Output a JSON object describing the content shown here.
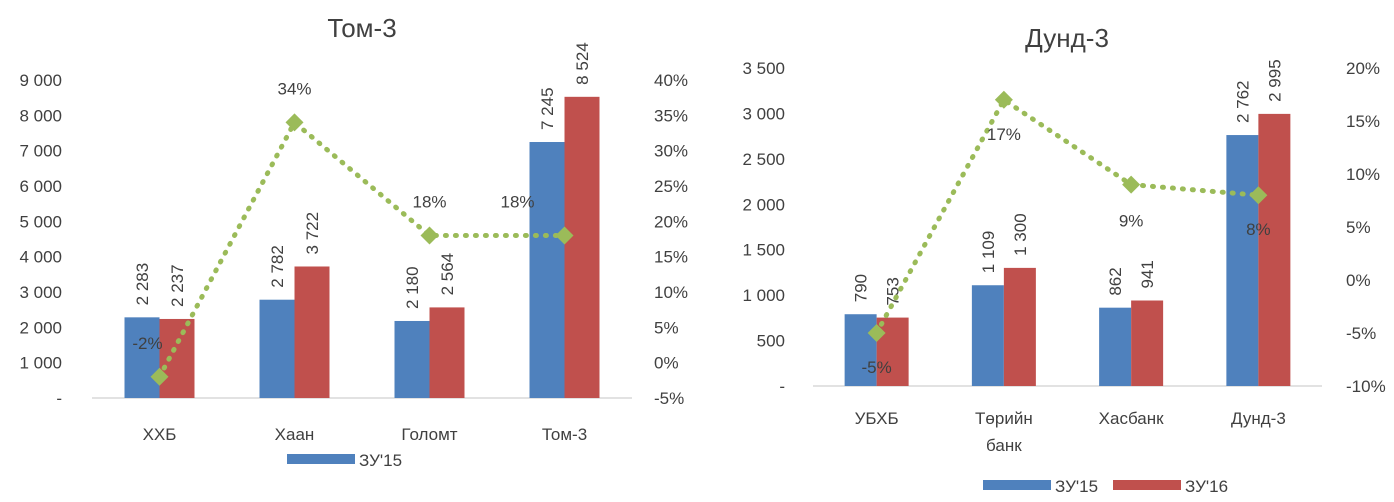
{
  "colors": {
    "series_2015": "#4F81BD",
    "series_2016": "#C0504D",
    "growth_line": "#9BBB59",
    "axis": "#D9D9D9",
    "text": "#404040"
  },
  "chart_data": [
    {
      "type": "bar",
      "title": "Том-3",
      "categories": [
        "ХХБ",
        "Хаан",
        "Голомт",
        "Том-3"
      ],
      "series": [
        {
          "name": "ЗУ'15",
          "values": [
            2283,
            2782,
            2180,
            7245
          ],
          "labels": [
            "2 283",
            "2 782",
            "2 180",
            "7 245"
          ]
        },
        {
          "values": [
            2237,
            3722,
            2564,
            8524
          ],
          "labels": [
            "2 237",
            "3 722",
            "2 564",
            "8 524"
          ]
        }
      ],
      "growth": {
        "values": [
          -2,
          34,
          18,
          18
        ],
        "labels": [
          "-2%",
          "34%",
          "18%",
          "18%"
        ],
        "axis": "secondary"
      },
      "ylim": [
        0,
        9000
      ],
      "y_ticks": [
        "-",
        "1 000",
        "2 000",
        "3 000",
        "4 000",
        "5 000",
        "6 000",
        "7 000",
        "8 000",
        "9 000"
      ],
      "y2lim": [
        -5,
        40
      ],
      "y2_ticks": [
        "-5%",
        "0%",
        "5%",
        "10%",
        "15%",
        "20%",
        "25%",
        "30%",
        "35%",
        "40%"
      ],
      "legend": [
        "ЗУ'15"
      ],
      "legend_position": "bottom"
    },
    {
      "type": "bar",
      "title": "Дунд-3",
      "categories": [
        "УБХБ",
        "Төрийн банк",
        "Хасбанк",
        "Дунд-3"
      ],
      "category_lines": [
        [
          "УБХБ"
        ],
        [
          "Төрийн",
          "банк"
        ],
        [
          "Хасбанк"
        ],
        [
          "Дунд-3"
        ]
      ],
      "series": [
        {
          "name": "ЗУ'15",
          "values": [
            790,
            1109,
            862,
            2762
          ],
          "labels": [
            "790",
            "1 109",
            "862",
            "2 762"
          ]
        },
        {
          "name": "ЗУ'16",
          "values": [
            753,
            1300,
            941,
            2995
          ],
          "labels": [
            "753",
            "1 300",
            "941",
            "2 995"
          ]
        }
      ],
      "growth": {
        "values": [
          -5,
          17,
          9,
          8
        ],
        "labels": [
          "-5%",
          "17%",
          "9%",
          "8%"
        ],
        "axis": "secondary"
      },
      "ylim": [
        0,
        3500
      ],
      "y_ticks": [
        "-",
        "500",
        "1 000",
        "1 500",
        "2 000",
        "2 500",
        "3 000",
        "3 500"
      ],
      "y2lim": [
        -10,
        20
      ],
      "y2_ticks": [
        "-10%",
        "-5%",
        "0%",
        "5%",
        "10%",
        "15%",
        "20%"
      ],
      "legend": [
        "ЗУ'15",
        "ЗУ'16"
      ],
      "legend_position": "bottom"
    }
  ]
}
